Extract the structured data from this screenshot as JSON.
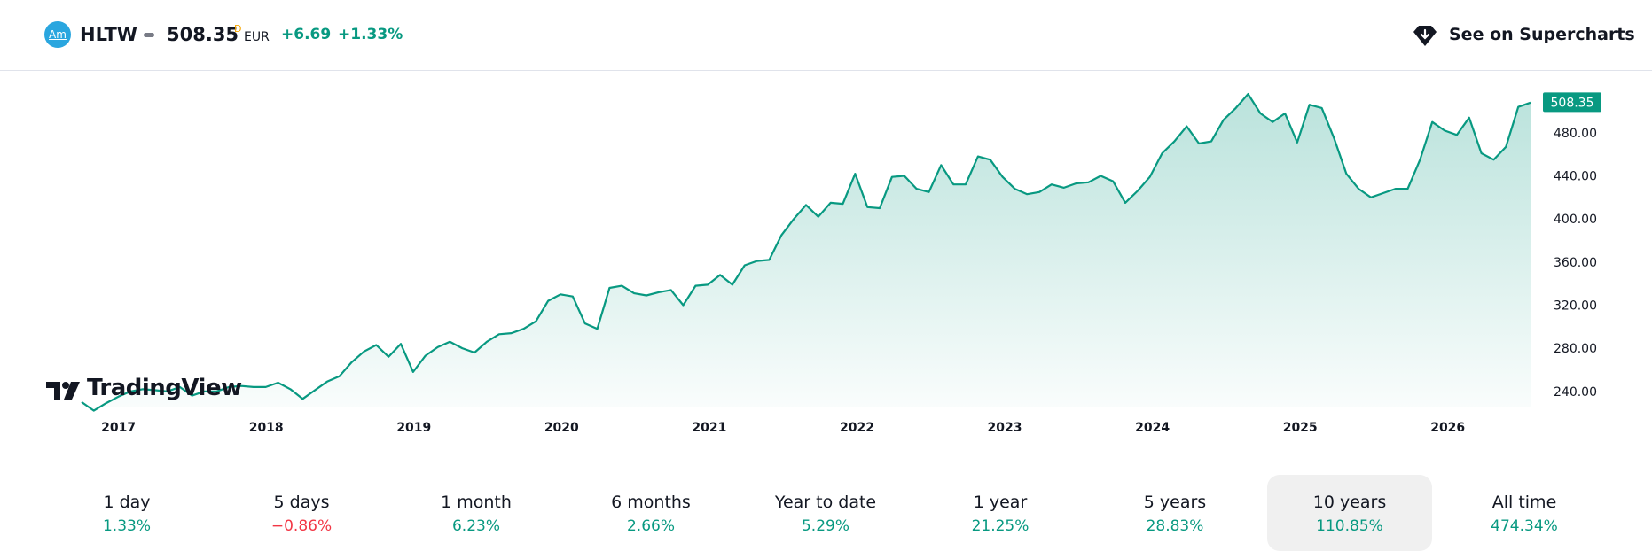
{
  "header": {
    "logo_text": "Am",
    "ticker": "HLTW",
    "price": "508.35",
    "price_marker": "D",
    "currency": "EUR",
    "change": "+6.69",
    "change_pct": "+1.33%",
    "supercharts_label": "See on Supercharts",
    "supercharts_icon": "supercharts-icon"
  },
  "branding": {
    "logo_text": "TradingView"
  },
  "colors": {
    "line": "#089981",
    "positive": "#089981",
    "negative": "#f23645",
    "price_tag_bg": "#089981"
  },
  "chart_data": {
    "type": "area",
    "x_start_year": 2016.75,
    "x_end_year": 2026.56,
    "xticks": [
      "2017",
      "2018",
      "2019",
      "2020",
      "2021",
      "2022",
      "2023",
      "2024",
      "2025",
      "2026"
    ],
    "yticks": [
      "240.00",
      "280.00",
      "320.00",
      "360.00",
      "400.00",
      "440.00",
      "480.00"
    ],
    "ylim": [
      225,
      521
    ],
    "last_price_label": "508.35",
    "grid": false,
    "series": [
      {
        "values": [
          230,
          222,
          229,
          235,
          240,
          242,
          241,
          240,
          244,
          236,
          240,
          240,
          244,
          245,
          244,
          244,
          248,
          242,
          233,
          241,
          249,
          254,
          267,
          277,
          283,
          272,
          284,
          258,
          273,
          281,
          286,
          280,
          276,
          286,
          293,
          294,
          298,
          305,
          324,
          330,
          328,
          303,
          298,
          336,
          338,
          331,
          329,
          332,
          334,
          320,
          338,
          339,
          348,
          339,
          357,
          361,
          362,
          385,
          400,
          413,
          402,
          415,
          414,
          442,
          411,
          410,
          439,
          440,
          428,
          425,
          450,
          432,
          432,
          458,
          455,
          439,
          428,
          423,
          425,
          432,
          429,
          433,
          434,
          440,
          435,
          415,
          426,
          439,
          461,
          472,
          486,
          470,
          472,
          492,
          503,
          516,
          498,
          490,
          498,
          471,
          506,
          503,
          475,
          442,
          428,
          420,
          424,
          428,
          428,
          455,
          490,
          482,
          478,
          494,
          461,
          455,
          467,
          504,
          508
        ]
      }
    ]
  },
  "ranges": [
    {
      "label": "1 day",
      "value": "1.33%",
      "dir": "up"
    },
    {
      "label": "5 days",
      "value": "−0.86%",
      "dir": "down"
    },
    {
      "label": "1 month",
      "value": "6.23%",
      "dir": "up"
    },
    {
      "label": "6 months",
      "value": "2.66%",
      "dir": "up"
    },
    {
      "label": "Year to date",
      "value": "5.29%",
      "dir": "up"
    },
    {
      "label": "1 year",
      "value": "21.25%",
      "dir": "up"
    },
    {
      "label": "5 years",
      "value": "28.83%",
      "dir": "up"
    },
    {
      "label": "10 years",
      "value": "110.85%",
      "dir": "up",
      "active": true
    },
    {
      "label": "All time",
      "value": "474.34%",
      "dir": "up"
    }
  ]
}
